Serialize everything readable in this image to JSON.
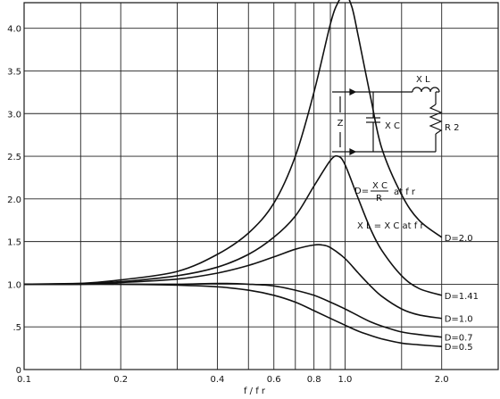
{
  "chart_data": {
    "type": "line",
    "title": "",
    "xlabel": "f / f r",
    "ylabel": "",
    "x_scale": "log",
    "xlim": [
      0.1,
      3.0
    ],
    "ylim": [
      0,
      4.3
    ],
    "x_tick_labels": [
      {
        "v": 0.1,
        "label": "0.1"
      },
      {
        "v": 0.2,
        "label": "0.2"
      },
      {
        "v": 0.4,
        "label": "0.4"
      },
      {
        "v": 0.6,
        "label": "0.6"
      },
      {
        "v": 0.8,
        "label": "0.8"
      },
      {
        "v": 1.0,
        "label": "1.0"
      },
      {
        "v": 2.0,
        "label": "2.0"
      }
    ],
    "x_gridlines": [
      0.1,
      0.15,
      0.2,
      0.3,
      0.4,
      0.5,
      0.6,
      0.7,
      0.8,
      0.9,
      1.0,
      1.5,
      2.0,
      3.0
    ],
    "y_tick_labels": [
      {
        "v": 0,
        "label": "0"
      },
      {
        "v": 0.5,
        "label": ".5"
      },
      {
        "v": 1.0,
        "label": "1.0"
      },
      {
        "v": 1.5,
        "label": "1.5"
      },
      {
        "v": 2.0,
        "label": "2.0"
      },
      {
        "v": 2.5,
        "label": "2.5"
      },
      {
        "v": 3.0,
        "label": "3.0"
      },
      {
        "v": 3.5,
        "label": "3.5"
      },
      {
        "v": 4.0,
        "label": "4.0"
      }
    ],
    "grid": true,
    "legend": "curve-end labels at right",
    "series": [
      {
        "name": "D=2.0",
        "x": [
          0.1,
          0.15,
          0.2,
          0.3,
          0.4,
          0.5,
          0.6,
          0.7,
          0.8,
          0.9,
          0.95,
          1.0,
          1.05,
          1.1,
          1.2,
          1.3,
          1.5,
          1.7,
          2.0
        ],
        "y": [
          1.0,
          1.01,
          1.05,
          1.15,
          1.35,
          1.6,
          1.95,
          2.5,
          3.25,
          4.05,
          4.3,
          4.4,
          4.25,
          3.9,
          3.2,
          2.6,
          2.05,
          1.75,
          1.55
        ]
      },
      {
        "name": "D=1.41",
        "x": [
          0.1,
          0.15,
          0.2,
          0.3,
          0.4,
          0.5,
          0.6,
          0.7,
          0.8,
          0.9,
          0.95,
          1.0,
          1.1,
          1.2,
          1.3,
          1.5,
          1.7,
          2.0
        ],
        "y": [
          1.0,
          1.01,
          1.03,
          1.1,
          1.2,
          1.35,
          1.55,
          1.8,
          2.15,
          2.45,
          2.5,
          2.4,
          2.0,
          1.65,
          1.4,
          1.1,
          0.95,
          0.87
        ]
      },
      {
        "name": "D=1.0",
        "x": [
          0.1,
          0.15,
          0.2,
          0.3,
          0.4,
          0.5,
          0.6,
          0.7,
          0.8,
          0.85,
          0.9,
          1.0,
          1.1,
          1.2,
          1.3,
          1.5,
          1.7,
          2.0
        ],
        "y": [
          1.0,
          1.0,
          1.02,
          1.06,
          1.13,
          1.22,
          1.32,
          1.41,
          1.46,
          1.46,
          1.43,
          1.3,
          1.13,
          0.98,
          0.86,
          0.71,
          0.64,
          0.6
        ]
      },
      {
        "name": "D=0.7",
        "x": [
          0.1,
          0.15,
          0.2,
          0.3,
          0.4,
          0.5,
          0.6,
          0.7,
          0.8,
          0.9,
          1.0,
          1.1,
          1.2,
          1.3,
          1.5,
          1.7,
          2.0
        ],
        "y": [
          1.0,
          1.0,
          1.0,
          1.0,
          1.01,
          1.0,
          0.98,
          0.93,
          0.87,
          0.79,
          0.71,
          0.63,
          0.56,
          0.51,
          0.44,
          0.41,
          0.38
        ]
      },
      {
        "name": "D=0.5",
        "x": [
          0.1,
          0.15,
          0.2,
          0.3,
          0.4,
          0.5,
          0.6,
          0.7,
          0.8,
          0.9,
          1.0,
          1.1,
          1.2,
          1.3,
          1.5,
          1.7,
          2.0
        ],
        "y": [
          1.0,
          1.0,
          1.0,
          0.99,
          0.97,
          0.93,
          0.87,
          0.79,
          0.69,
          0.6,
          0.52,
          0.45,
          0.4,
          0.36,
          0.31,
          0.29,
          0.27
        ]
      }
    ]
  },
  "annotations": {
    "d_formula": {
      "prefix": "D=",
      "numerator": "X C",
      "denominator": "R",
      "suffix": "at f r"
    },
    "xl_formula": "X L = X C at f r"
  },
  "circuit": {
    "terminal_label": "Z",
    "capacitor_label": "X C",
    "inductor_label": "X L",
    "resistor_label": "R 2"
  }
}
